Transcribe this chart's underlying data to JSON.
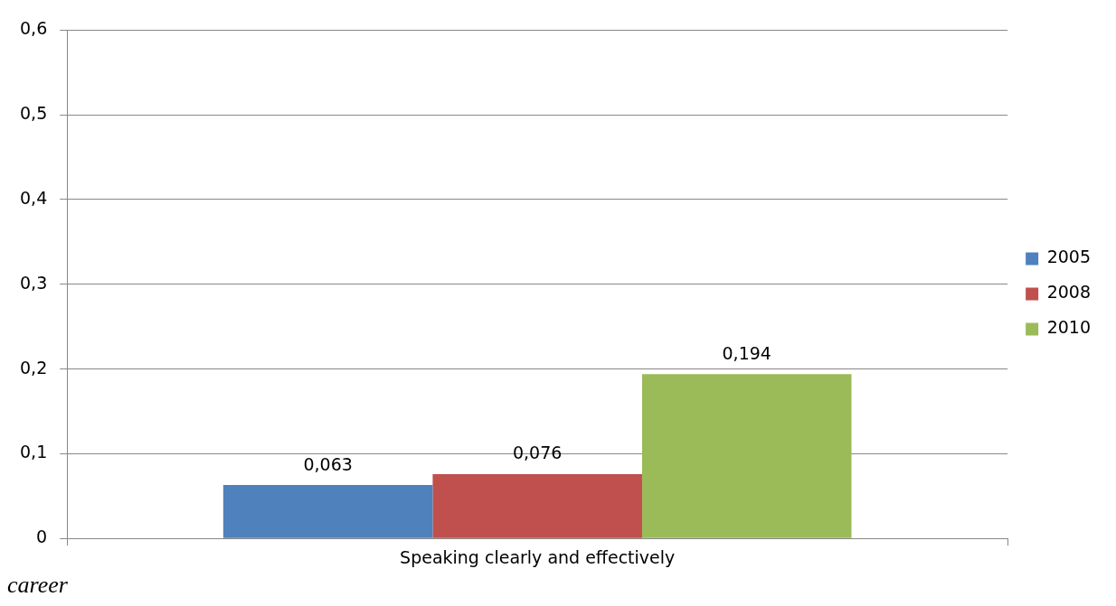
{
  "chart_data": {
    "type": "bar",
    "categories": [
      "Speaking clearly and effectively"
    ],
    "series": [
      {
        "name": "2005",
        "color": "#4f81bd",
        "values": [
          0.063
        ],
        "value_labels": [
          "0,063"
        ]
      },
      {
        "name": "2008",
        "color": "#c0504d",
        "values": [
          0.076
        ],
        "value_labels": [
          "0,076"
        ]
      },
      {
        "name": "2010",
        "color": "#9bbb59",
        "values": [
          0.194
        ],
        "value_labels": [
          "0,194"
        ]
      }
    ],
    "ylim": [
      0,
      0.6
    ],
    "yticks": [
      {
        "value": 0,
        "label": "0"
      },
      {
        "value": 0.1,
        "label": "0,1"
      },
      {
        "value": 0.2,
        "label": "0,2"
      },
      {
        "value": 0.3,
        "label": "0,3"
      },
      {
        "value": 0.4,
        "label": "0,4"
      },
      {
        "value": 0.5,
        "label": "0,5"
      },
      {
        "value": 0.6,
        "label": "0,6"
      }
    ],
    "grid": "y",
    "legend": "right",
    "annotations": [
      "career"
    ]
  }
}
